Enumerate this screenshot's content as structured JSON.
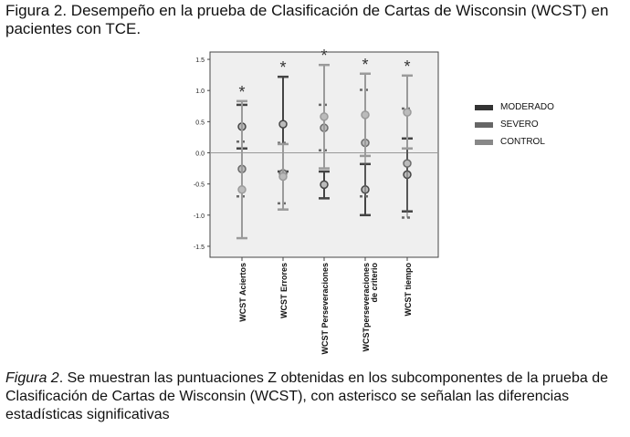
{
  "title": "Figura 2. Desempeño en la prueba de Clasificación de Cartas de Wisconsin (WCST) en pacientes con TCE.",
  "caption": {
    "label": "Figura 2",
    "text": ". Se muestran las puntuaciones Z obtenidas en los subcomponentes de la prueba de Clasificación de Cartas de Wisconsin (WCST), con asterisco se señalan las diferencias estadísticas significativas"
  },
  "chart_data": {
    "type": "errorbar",
    "categories": [
      "WCST Aciertos",
      "WCST Errores",
      "WCST Perseveraciones",
      "WCSTperseveraciones de criterio",
      "WCST tiempo"
    ],
    "ylim": [
      -1.6,
      1.6
    ],
    "yticks": [
      "1.5",
      "1.0",
      "0.5",
      "0.0",
      "-0.5",
      "-1.0",
      "-1.5"
    ],
    "significance_marker": "*",
    "legend": "right",
    "series": [
      {
        "name": "MODERADO",
        "color": "#444444",
        "mean": [
          0.42,
          0.46,
          -0.51,
          -0.59,
          -0.35
        ],
        "lower": [
          0.07,
          -0.3,
          -0.73,
          -1.0,
          -0.94
        ],
        "upper": [
          0.77,
          1.22,
          -0.3,
          -0.18,
          0.23
        ]
      },
      {
        "name": "SEVERO",
        "color": "#6a6a6a",
        "mean": [
          -0.26,
          -0.33,
          0.4,
          0.16,
          -0.17
        ],
        "lower": [
          -0.7,
          -0.81,
          0.04,
          -0.7,
          -1.04
        ],
        "upper": [
          0.18,
          0.16,
          0.77,
          1.01,
          0.71
        ]
      },
      {
        "name": "CONTROL",
        "color": "#9a9a9a",
        "mean": [
          -0.59,
          -0.38,
          0.58,
          0.61,
          0.65
        ],
        "lower": [
          -1.37,
          -0.91,
          -0.25,
          -0.05,
          0.07
        ],
        "upper": [
          0.83,
          0.14,
          1.41,
          1.27,
          1.24
        ]
      }
    ]
  }
}
